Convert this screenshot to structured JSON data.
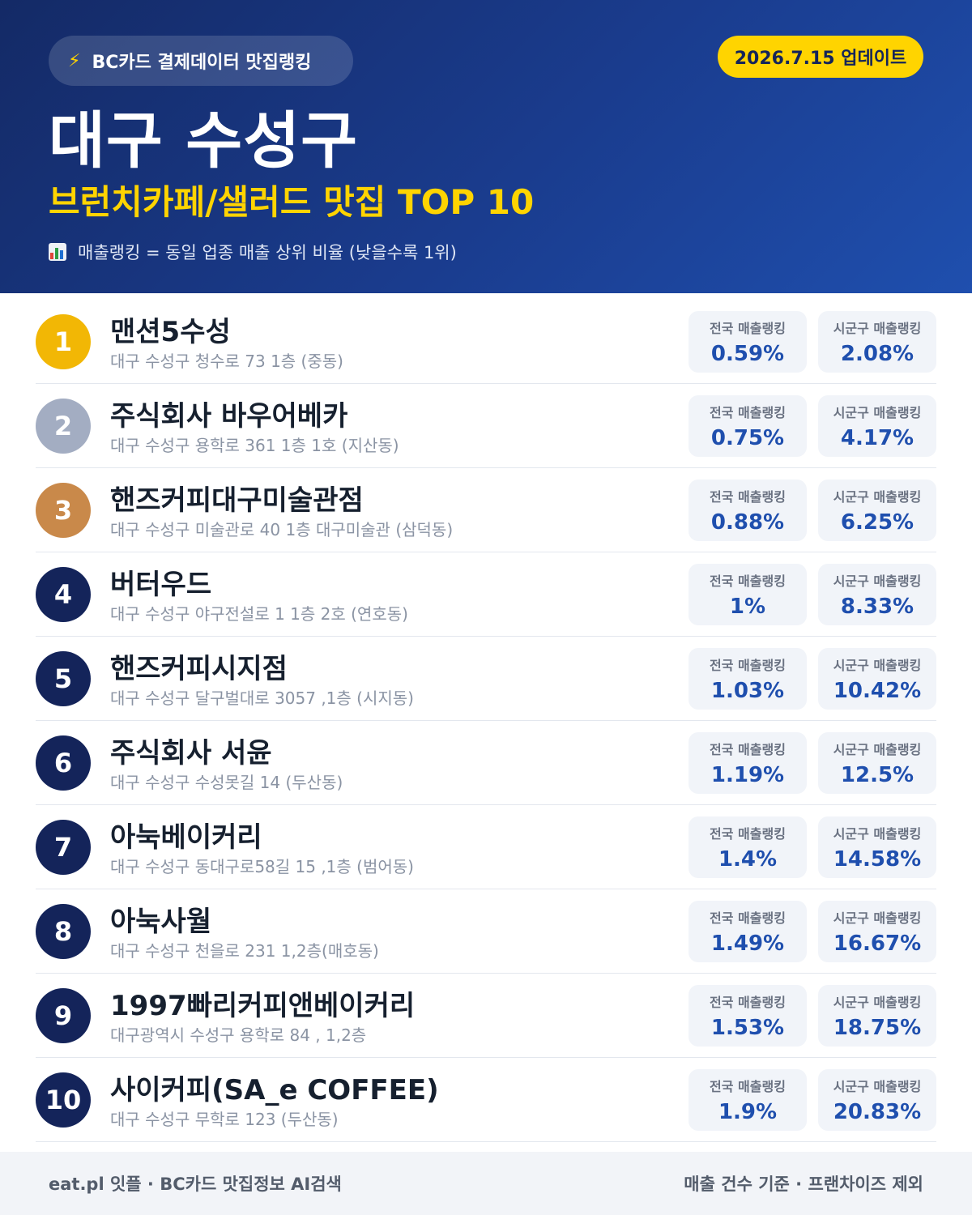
{
  "header": {
    "source_label": "BC카드 결제데이터 맛집랭킹",
    "source_icon": "lightning-icon",
    "update_label": "2026.7.15 업데이트",
    "title": "대구 수성구",
    "subtitle": "브런치카페/샐러드 맛집 TOP 10",
    "note": "매출랭킹 = 동일 업종 매출 상위 비율 (낮을수록 1위)",
    "note_icon": "bar-chart-icon"
  },
  "labels": {
    "national": "전국 매출랭킹",
    "regional": "시군구 매출랭킹"
  },
  "colors": {
    "gold": "#f2b705",
    "silver": "#a3adc2",
    "bronze": "#c9894a",
    "navy": "#14245a",
    "accent_yellow": "#ffd400",
    "value_blue": "#1f4fae"
  },
  "items": [
    {
      "rank": "1",
      "name": "맨션5수성",
      "address": "대구 수성구 청수로 73 1층 (중동)",
      "national": "0.59%",
      "regional": "2.08%"
    },
    {
      "rank": "2",
      "name": "주식회사 바우어베카",
      "address": "대구 수성구 용학로 361 1층 1호 (지산동)",
      "national": "0.75%",
      "regional": "4.17%"
    },
    {
      "rank": "3",
      "name": "핸즈커피대구미술관점",
      "address": "대구 수성구 미술관로 40 1층 대구미술관 (삼덕동)",
      "national": "0.88%",
      "regional": "6.25%"
    },
    {
      "rank": "4",
      "name": "버터우드",
      "address": "대구 수성구 야구전설로 1 1층 2호 (연호동)",
      "national": "1%",
      "regional": "8.33%"
    },
    {
      "rank": "5",
      "name": "핸즈커피시지점",
      "address": "대구 수성구 달구벌대로 3057 ,1층 (시지동)",
      "national": "1.03%",
      "regional": "10.42%"
    },
    {
      "rank": "6",
      "name": "주식회사 서윤",
      "address": "대구 수성구 수성못길 14 (두산동)",
      "national": "1.19%",
      "regional": "12.5%"
    },
    {
      "rank": "7",
      "name": "아눅베이커리",
      "address": "대구 수성구 동대구로58길 15 ,1층 (범어동)",
      "national": "1.4%",
      "regional": "14.58%"
    },
    {
      "rank": "8",
      "name": "아눅사월",
      "address": "대구 수성구 천을로 231 1,2층(매호동)",
      "national": "1.49%",
      "regional": "16.67%"
    },
    {
      "rank": "9",
      "name": "1997빠리커피앤베이커리",
      "address": "대구광역시 수성구 용학로 84 , 1,2층",
      "national": "1.53%",
      "regional": "18.75%"
    },
    {
      "rank": "10",
      "name": "사이커피(SA_e COFFEE)",
      "address": "대구 수성구 무학로 123 (두산동)",
      "national": "1.9%",
      "regional": "20.83%"
    }
  ],
  "footer": {
    "left": "eat.pl 잇플 · BC카드 맛집정보 AI검색",
    "right": "매출 건수 기준 · 프랜차이즈 제외"
  }
}
